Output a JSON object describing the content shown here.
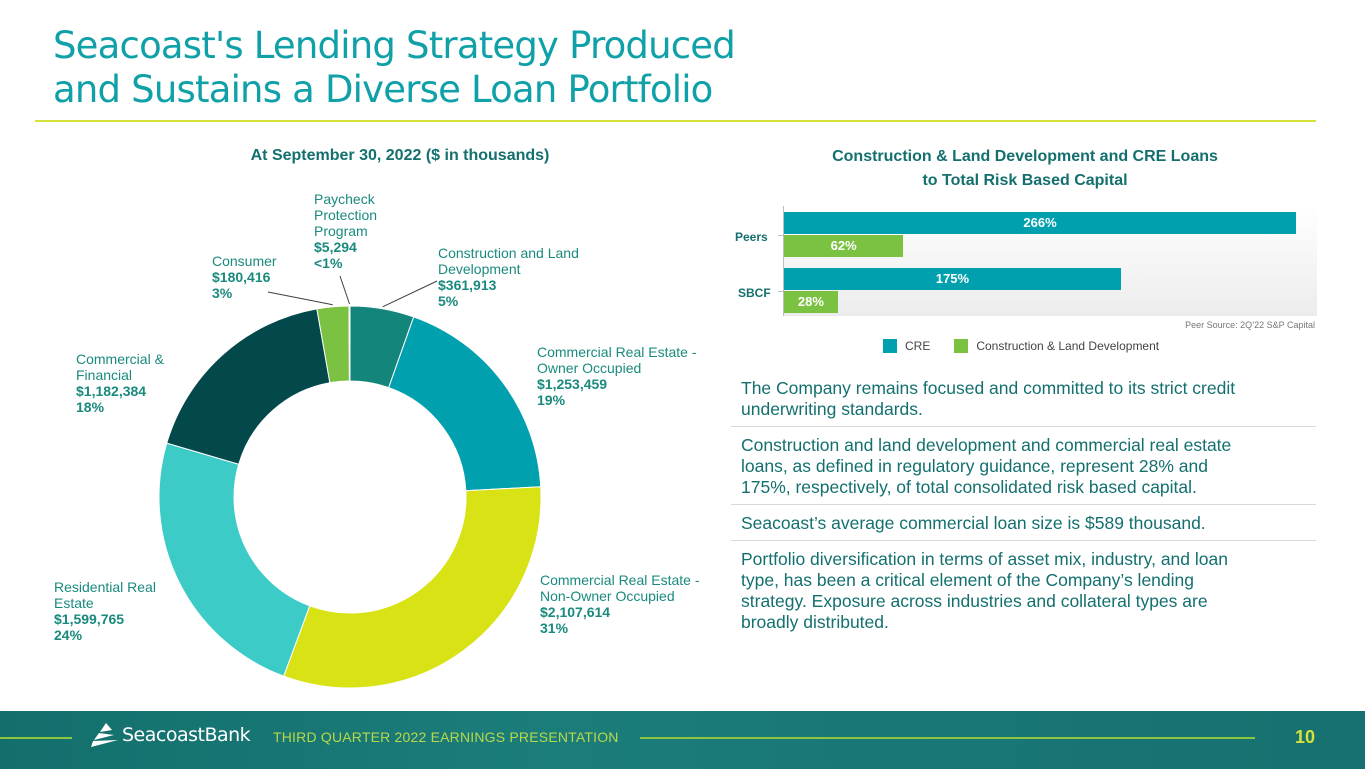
{
  "slide": {
    "title_line1": "Seacoast's Lending Strategy Produced",
    "title_line2": "and Sustains a Diverse Loan Portfolio",
    "footer_text": "THIRD QUARTER 2022 EARNINGS PRESENTATION",
    "page_number": "10",
    "logo_text": "SeacoastBank"
  },
  "bullets": [
    "The Company remains focused and committed to its strict credit underwriting standards.",
    "Construction and land development and commercial real estate loans, as defined in regulatory guidance, represent 28% and 175%, respectively, of total consolidated risk based capital.",
    "Seacoast’s average commercial loan size is $589 thousand.",
    "Portfolio diversification in terms of asset mix, industry, and loan type, has been a critical element of the Company’s lending strategy. Exposure across industries and collateral types are broadly distributed."
  ],
  "chart_data": [
    {
      "type": "pie",
      "title": "At September 30, 2022 ($ in thousands)",
      "slices": [
        {
          "label": "Construction and Land Development",
          "value": 361913,
          "value_text": "$361,913",
          "pct_text": "5%",
          "color": "#13857a"
        },
        {
          "label": "Commercial Real Estate - Owner Occupied",
          "value": 1253459,
          "value_text": "$1,253,459",
          "pct_text": "19%",
          "color": "#00a0ae"
        },
        {
          "label": "Commercial Real Estate - Non-Owner Occupied",
          "value": 2107614,
          "value_text": "$2,107,614",
          "pct_text": "31%",
          "color": "#d8e215"
        },
        {
          "label": "Residential Real Estate",
          "value": 1599765,
          "value_text": "$1,599,765",
          "pct_text": "24%",
          "color": "#3ccbc7"
        },
        {
          "label": "Commercial & Financial",
          "value": 1182384,
          "value_text": "$1,182,384",
          "pct_text": "18%",
          "color": "#03484b"
        },
        {
          "label": "Consumer",
          "value": 180416,
          "value_text": "$180,416",
          "pct_text": "3%",
          "color": "#7cc242"
        },
        {
          "label": "Paycheck Protection Program",
          "value": 5294,
          "value_text": "$5,294",
          "pct_text": "<1%",
          "color": "#0b8a7c"
        }
      ]
    },
    {
      "type": "bar",
      "orientation": "horizontal",
      "title": "Construction & Land Development and CRE Loans to Total Risk Based Capital",
      "categories": [
        "Peers",
        "SBCF"
      ],
      "series": [
        {
          "name": "CRE",
          "values": [
            266,
            175
          ],
          "labels": [
            "266%",
            "175%"
          ],
          "color": "#00a0ae"
        },
        {
          "name": "Construction & Land Development",
          "values": [
            62,
            28
          ],
          "labels": [
            "62%",
            "28%"
          ],
          "color": "#7cc242"
        }
      ],
      "xlim": [
        0,
        280
      ],
      "note": "Peer Source: 2Q’22 S&P Capital",
      "legend": "bottom"
    }
  ]
}
